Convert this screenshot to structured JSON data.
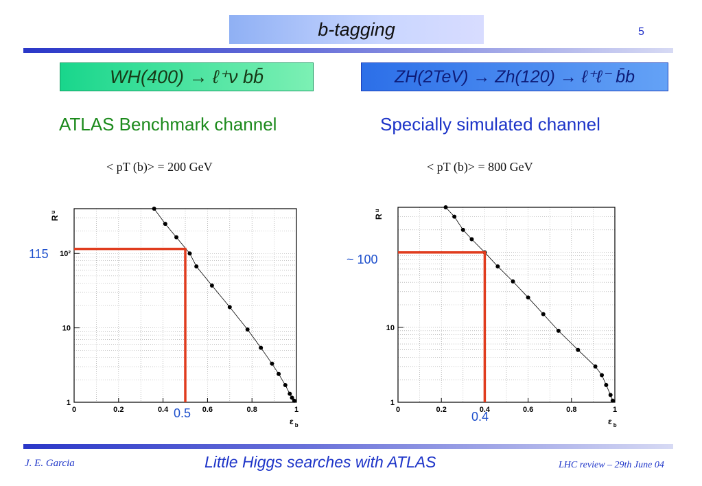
{
  "title": "b-tagging",
  "page_number": "5",
  "left": {
    "channel_box": "WH(400) → ℓ⁺ν bb̄",
    "subtitle": "ATLAS Benchmark channel",
    "pt_note": "< pT (b)> = 200 GeV",
    "annotation_y": "115",
    "annotation_x": "0.5"
  },
  "right": {
    "channel_box": "ZH(2TeV) → Zh(120) → ℓ⁺ℓ⁻ b̄b",
    "subtitle": "Specially simulated channel",
    "pt_note": "< pT (b)> =  800 GeV",
    "annotation_y": "~ 100",
    "annotation_x": "0.4"
  },
  "footer": {
    "author": "J. E. Garcia",
    "center": "Little Higgs searches with ATLAS",
    "right": "LHC review – 29th June 04"
  },
  "colors": {
    "accent_blue": "#1d34c8",
    "marker_red": "#e03c1e",
    "green_text": "#1c8a1c"
  },
  "chart_data": [
    {
      "type": "scatter",
      "xlabel": "ε b",
      "ylabel": "R u",
      "xlim": [
        0,
        1
      ],
      "ylim": [
        1,
        400
      ],
      "y_scale": "log",
      "grid": true,
      "x_ticks": [
        "0",
        "0.2",
        "0.4",
        "0.6",
        "0.8",
        "1"
      ],
      "y_ticks": [
        "1",
        "10",
        "10²"
      ],
      "series": [
        {
          "x": [
            0.36,
            0.41,
            0.46,
            0.52,
            0.55,
            0.62,
            0.7,
            0.78,
            0.84,
            0.89,
            0.92,
            0.95,
            0.97,
            0.98,
            0.99
          ],
          "y": [
            400,
            250,
            165,
            100,
            67,
            37,
            19,
            9.5,
            5.4,
            3.3,
            2.4,
            1.7,
            1.3,
            1.15,
            1.05
          ]
        }
      ],
      "marker_line": {
        "x": 0.5,
        "y": 115
      }
    },
    {
      "type": "scatter",
      "xlabel": "ε b",
      "ylabel": "R u",
      "xlim": [
        0,
        1
      ],
      "ylim": [
        1,
        400
      ],
      "y_scale": "log",
      "grid": true,
      "x_ticks": [
        "0",
        "0.2",
        "0.4",
        "0.6",
        "0.8",
        "1"
      ],
      "y_ticks": [
        "1",
        "10"
      ],
      "series": [
        {
          "x": [
            0.22,
            0.26,
            0.3,
            0.34,
            0.4,
            0.46,
            0.53,
            0.6,
            0.67,
            0.74,
            0.83,
            0.91,
            0.94,
            0.96,
            0.98,
            0.99
          ],
          "y": [
            400,
            300,
            200,
            150,
            100,
            65,
            41,
            25,
            15,
            9,
            5,
            3,
            2.3,
            1.7,
            1.25,
            1.05
          ]
        }
      ],
      "marker_line": {
        "x": 0.4,
        "y": 100
      }
    }
  ]
}
